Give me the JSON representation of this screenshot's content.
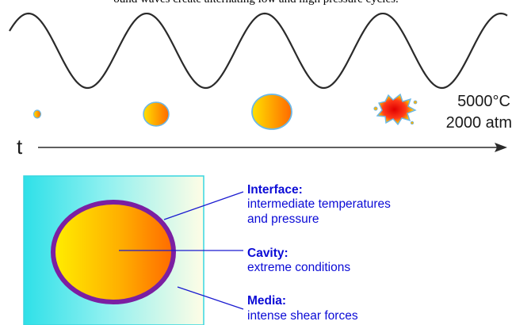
{
  "top_caption": "ound waves create alternating low and high pressure cycles.",
  "time_axis": {
    "label": "t"
  },
  "collapse_conditions": {
    "temperature": "5000°C",
    "pressure": "2000 atm"
  },
  "legend": {
    "interface": {
      "title": "Interface:",
      "line1": "intermediate temperatures",
      "line2": "and pressure"
    },
    "cavity": {
      "title": "Cavity:",
      "line1": "extreme conditions"
    },
    "media": {
      "title": "Media:",
      "line1": "intense shear forces"
    }
  },
  "colors": {
    "text_blue": "#0b0bd6",
    "bubble_yellow": "#ffe000",
    "bubble_orange": "#ff6a00",
    "cavity_rim": "#7b1fa2",
    "media_cyan": "#2ee0e8",
    "leader_blue": "#1a1ad0"
  }
}
